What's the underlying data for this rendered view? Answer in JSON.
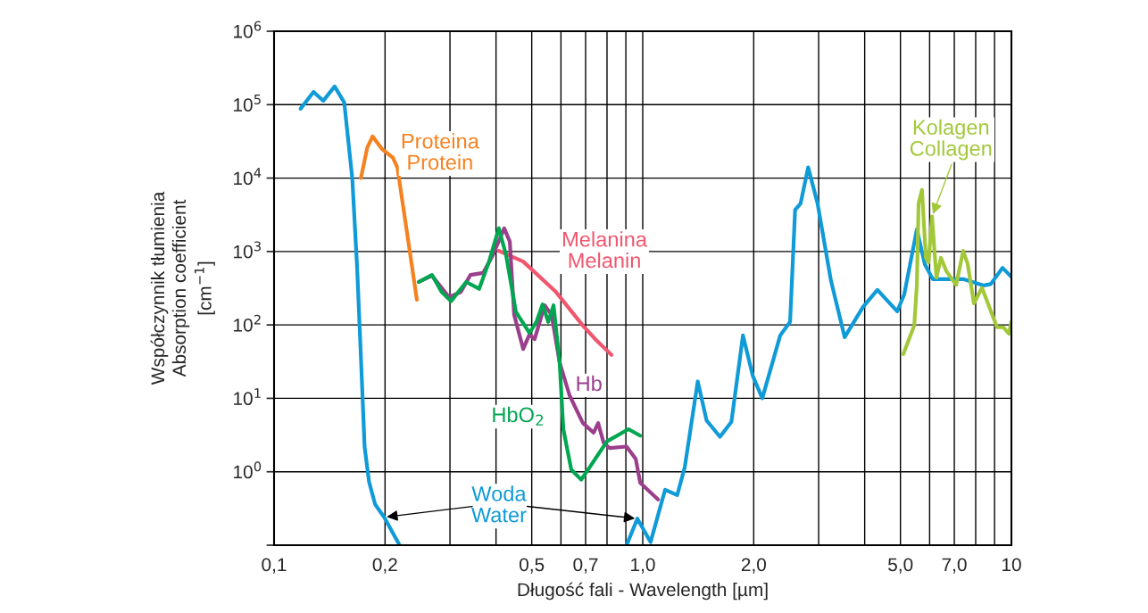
{
  "chart_data": {
    "type": "line",
    "log": "xy",
    "grid": true,
    "xlabel": "Długość fali - Wavelength [µm]",
    "ylabel": "Współczynnik tłumienia\nAbsorption coefficient\n[cm$^{−1}$]",
    "xlim": [
      0.1,
      10
    ],
    "ylim": [
      0.1,
      1000000
    ],
    "xticks": [
      {
        "value": 0.1,
        "label": "0,1"
      },
      {
        "value": 0.2,
        "label": "0,2"
      },
      {
        "value": 0.3,
        "label": null
      },
      {
        "value": 0.4,
        "label": null
      },
      {
        "value": 0.5,
        "label": "0,5"
      },
      {
        "value": 0.6,
        "label": null
      },
      {
        "value": 0.7,
        "label": "0,7"
      },
      {
        "value": 0.8,
        "label": null
      },
      {
        "value": 0.9,
        "label": null
      },
      {
        "value": 1,
        "label": "1,0"
      },
      {
        "value": 2,
        "label": "2,0"
      },
      {
        "value": 3,
        "label": null
      },
      {
        "value": 4,
        "label": null
      },
      {
        "value": 5,
        "label": "5,0"
      },
      {
        "value": 6,
        "label": null
      },
      {
        "value": 7,
        "label": "7,0"
      },
      {
        "value": 8,
        "label": null
      },
      {
        "value": 9,
        "label": null
      },
      10
    ],
    "yticks": [
      {
        "value": 0.1,
        "label": null
      },
      {
        "value": 1,
        "label": "10$^{0}$"
      },
      {
        "value": 10,
        "label": "10$^{1}$"
      },
      {
        "value": 100,
        "label": "10$^{2}$"
      },
      {
        "value": 1000,
        "label": "10$^{3}$"
      },
      {
        "value": 10000,
        "label": "10$^{4}$"
      },
      {
        "value": 100000,
        "label": "10$^{5}$"
      },
      {
        "value": 1000000,
        "label": "10$^{6}$"
      }
    ],
    "marker": "none",
    "line_style": "solid",
    "series": [
      {
        "name": "Woda\nWater",
        "color": "#0f9ad8",
        "x": [
          0.118,
          0.128,
          0.136,
          0.146,
          0.155,
          0.163,
          0.168,
          0.172,
          0.176,
          0.181,
          0.188,
          0.199,
          0.219,
          null,
          0.904,
          0.967,
          1.05,
          1.15,
          1.24,
          1.3,
          1.41,
          1.49,
          1.62,
          1.74,
          1.87,
          1.99,
          2.11,
          2.36,
          2.51,
          2.59,
          2.68,
          2.81,
          2.98,
          3.24,
          3.53,
          3.96,
          4.33,
          4.9,
          5.12,
          5.54,
          5.82,
          6.12,
          7.4,
          8.41,
          8.79,
          9.46,
          10
        ],
        "values": [
          88000,
          149000,
          113000,
          177000,
          107000,
          9900,
          600,
          37,
          2.2,
          0.73,
          0.36,
          0.24,
          0.1,
          null,
          0.1,
          0.23,
          0.11,
          0.57,
          0.48,
          1.15,
          17,
          5.0,
          3.0,
          4.8,
          72,
          20,
          10,
          72,
          110,
          3700,
          4500,
          14000,
          4500,
          400,
          68,
          176,
          300,
          153,
          260,
          2000,
          675,
          420,
          420,
          345,
          360,
          600,
          450
        ]
      },
      {
        "name": "Proteina\nProtein",
        "color": "#f58220",
        "x": [
          0.172,
          0.179,
          0.185,
          0.196,
          0.21,
          0.216,
          0.227,
          0.244
        ],
        "values": [
          10000,
          26000,
          37000,
          25000,
          19000,
          14000,
          2600,
          220
        ]
      },
      {
        "name": "Melanina\nMelanin",
        "color": "#f0566e",
        "x": [
          0.407,
          0.474,
          0.582,
          0.688,
          0.748,
          0.823
        ],
        "values": [
          1020,
          730,
          280,
          98,
          62,
          39
        ]
      },
      {
        "name": "Hb",
        "color": "#9b3f8c",
        "x": [
          0.247,
          0.268,
          0.298,
          0.321,
          0.341,
          0.369,
          0.392,
          0.421,
          0.436,
          0.448,
          0.474,
          0.493,
          0.509,
          0.542,
          0.566,
          0.595,
          0.633,
          0.688,
          0.736,
          0.757,
          0.783,
          0.813,
          0.904,
          0.957,
          0.984,
          1.1
        ],
        "values": [
          385,
          470,
          240,
          280,
          480,
          510,
          890,
          2070,
          1360,
          137,
          47,
          74,
          64,
          185,
          137,
          31,
          11,
          4.6,
          3.4,
          4.6,
          2.5,
          2.1,
          2.2,
          1.5,
          0.71,
          0.42
        ]
      },
      {
        "name": "HbO$_{2}$",
        "color": "#00a650",
        "x": [
          0.247,
          0.268,
          0.285,
          0.302,
          0.332,
          0.36,
          0.383,
          0.407,
          0.426,
          0.453,
          0.493,
          0.515,
          0.535,
          0.554,
          0.573,
          0.595,
          0.609,
          0.64,
          0.681,
          0.72,
          0.8,
          0.915,
          0.984
        ],
        "values": [
          385,
          480,
          280,
          210,
          385,
          310,
          730,
          2070,
          890,
          150,
          78,
          110,
          190,
          110,
          185,
          31,
          3.8,
          1.07,
          0.78,
          1.18,
          2.6,
          3.8,
          3.1
        ]
      },
      {
        "name": "Kolagen\nCollagen",
        "color": "#a2c83a",
        "x": [
          5.09,
          5.45,
          5.54,
          5.6,
          5.72,
          5.86,
          5.96,
          6.09,
          6.26,
          6.44,
          6.66,
          7.08,
          7.4,
          7.61,
          7.91,
          8.32,
          9.14,
          9.51,
          9.84,
          10
        ],
        "values": [
          40,
          98,
          350,
          4500,
          6900,
          820,
          710,
          3000,
          440,
          820,
          540,
          350,
          1020,
          675,
          197,
          320,
          93,
          93,
          76,
          110
        ]
      }
    ]
  }
}
